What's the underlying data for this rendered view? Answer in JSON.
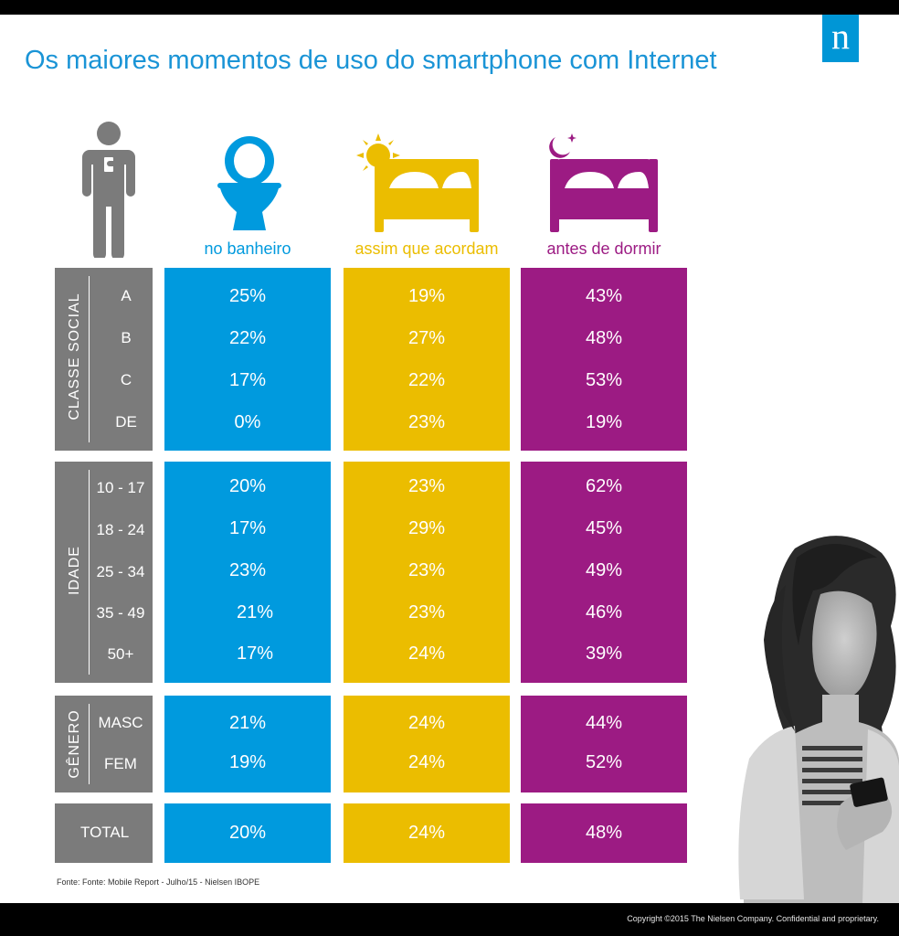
{
  "title": "Os maiores momentos de uso do smartphone com Internet",
  "logo_letter": "n",
  "columns": [
    {
      "label": "no banheiro",
      "color": "#009ade",
      "icon": "toilet-icon"
    },
    {
      "label": "assim que acordam",
      "color": "#ebbd00",
      "icon": "sun-bed-icon"
    },
    {
      "label": "antes de dormir",
      "color": "#9c1b83",
      "icon": "moon-bed-icon"
    }
  ],
  "groups": {
    "classe_social": {
      "label": "CLASSE SOCIAL",
      "rows": [
        {
          "label": "A",
          "values": [
            "25%",
            "19%",
            "43%"
          ]
        },
        {
          "label": "B",
          "values": [
            "22%",
            "27%",
            "48%"
          ]
        },
        {
          "label": "C",
          "values": [
            "17%",
            "22%",
            "53%"
          ]
        },
        {
          "label": "DE",
          "values": [
            "0%",
            "23%",
            "19%"
          ]
        }
      ]
    },
    "idade": {
      "label": "IDADE",
      "rows": [
        {
          "label": "10 - 17",
          "values": [
            "20%",
            "23%",
            "62%"
          ]
        },
        {
          "label": "18 - 24",
          "values": [
            "17%",
            "29%",
            "45%"
          ]
        },
        {
          "label": "25 - 34",
          "values": [
            "23%",
            "23%",
            "49%"
          ]
        },
        {
          "label": "35 - 49",
          "values": [
            "21%",
            "23%",
            "46%"
          ]
        },
        {
          "label": "50+",
          "values": [
            "17%",
            "24%",
            "39%"
          ]
        }
      ]
    },
    "genero": {
      "label": "GÊNERO",
      "rows": [
        {
          "label": "MASC",
          "values": [
            "21%",
            "24%",
            "44%"
          ]
        },
        {
          "label": "FEM",
          "values": [
            "19%",
            "24%",
            "52%"
          ]
        }
      ]
    },
    "total": {
      "label": "TOTAL",
      "values": [
        "20%",
        "24%",
        "48%"
      ]
    }
  },
  "source": "Fonte: Fonte: Mobile Report - Julho/15 - Nielsen IBOPE",
  "copyright": "Copyright ©2015 The Nielsen Company. Confidential and proprietary.",
  "chart_data": {
    "type": "table",
    "title": "Os maiores momentos de uso do smartphone com Internet",
    "columns": [
      "no banheiro",
      "assim que acordam",
      "antes de dormir"
    ],
    "rows": [
      {
        "group": "CLASSE SOCIAL",
        "label": "A",
        "values": [
          25,
          19,
          43
        ]
      },
      {
        "group": "CLASSE SOCIAL",
        "label": "B",
        "values": [
          22,
          27,
          48
        ]
      },
      {
        "group": "CLASSE SOCIAL",
        "label": "C",
        "values": [
          17,
          22,
          53
        ]
      },
      {
        "group": "CLASSE SOCIAL",
        "label": "DE",
        "values": [
          0,
          23,
          19
        ]
      },
      {
        "group": "IDADE",
        "label": "10 - 17",
        "values": [
          20,
          23,
          62
        ]
      },
      {
        "group": "IDADE",
        "label": "18 - 24",
        "values": [
          17,
          29,
          45
        ]
      },
      {
        "group": "IDADE",
        "label": "25 - 34",
        "values": [
          23,
          23,
          49
        ]
      },
      {
        "group": "IDADE",
        "label": "35 - 49",
        "values": [
          21,
          23,
          46
        ]
      },
      {
        "group": "IDADE",
        "label": "50+",
        "values": [
          17,
          24,
          39
        ]
      },
      {
        "group": "GÊNERO",
        "label": "MASC",
        "values": [
          21,
          24,
          44
        ]
      },
      {
        "group": "GÊNERO",
        "label": "FEM",
        "values": [
          19,
          24,
          52
        ]
      },
      {
        "group": "",
        "label": "TOTAL",
        "values": [
          20,
          24,
          48
        ]
      }
    ],
    "unit": "%"
  }
}
